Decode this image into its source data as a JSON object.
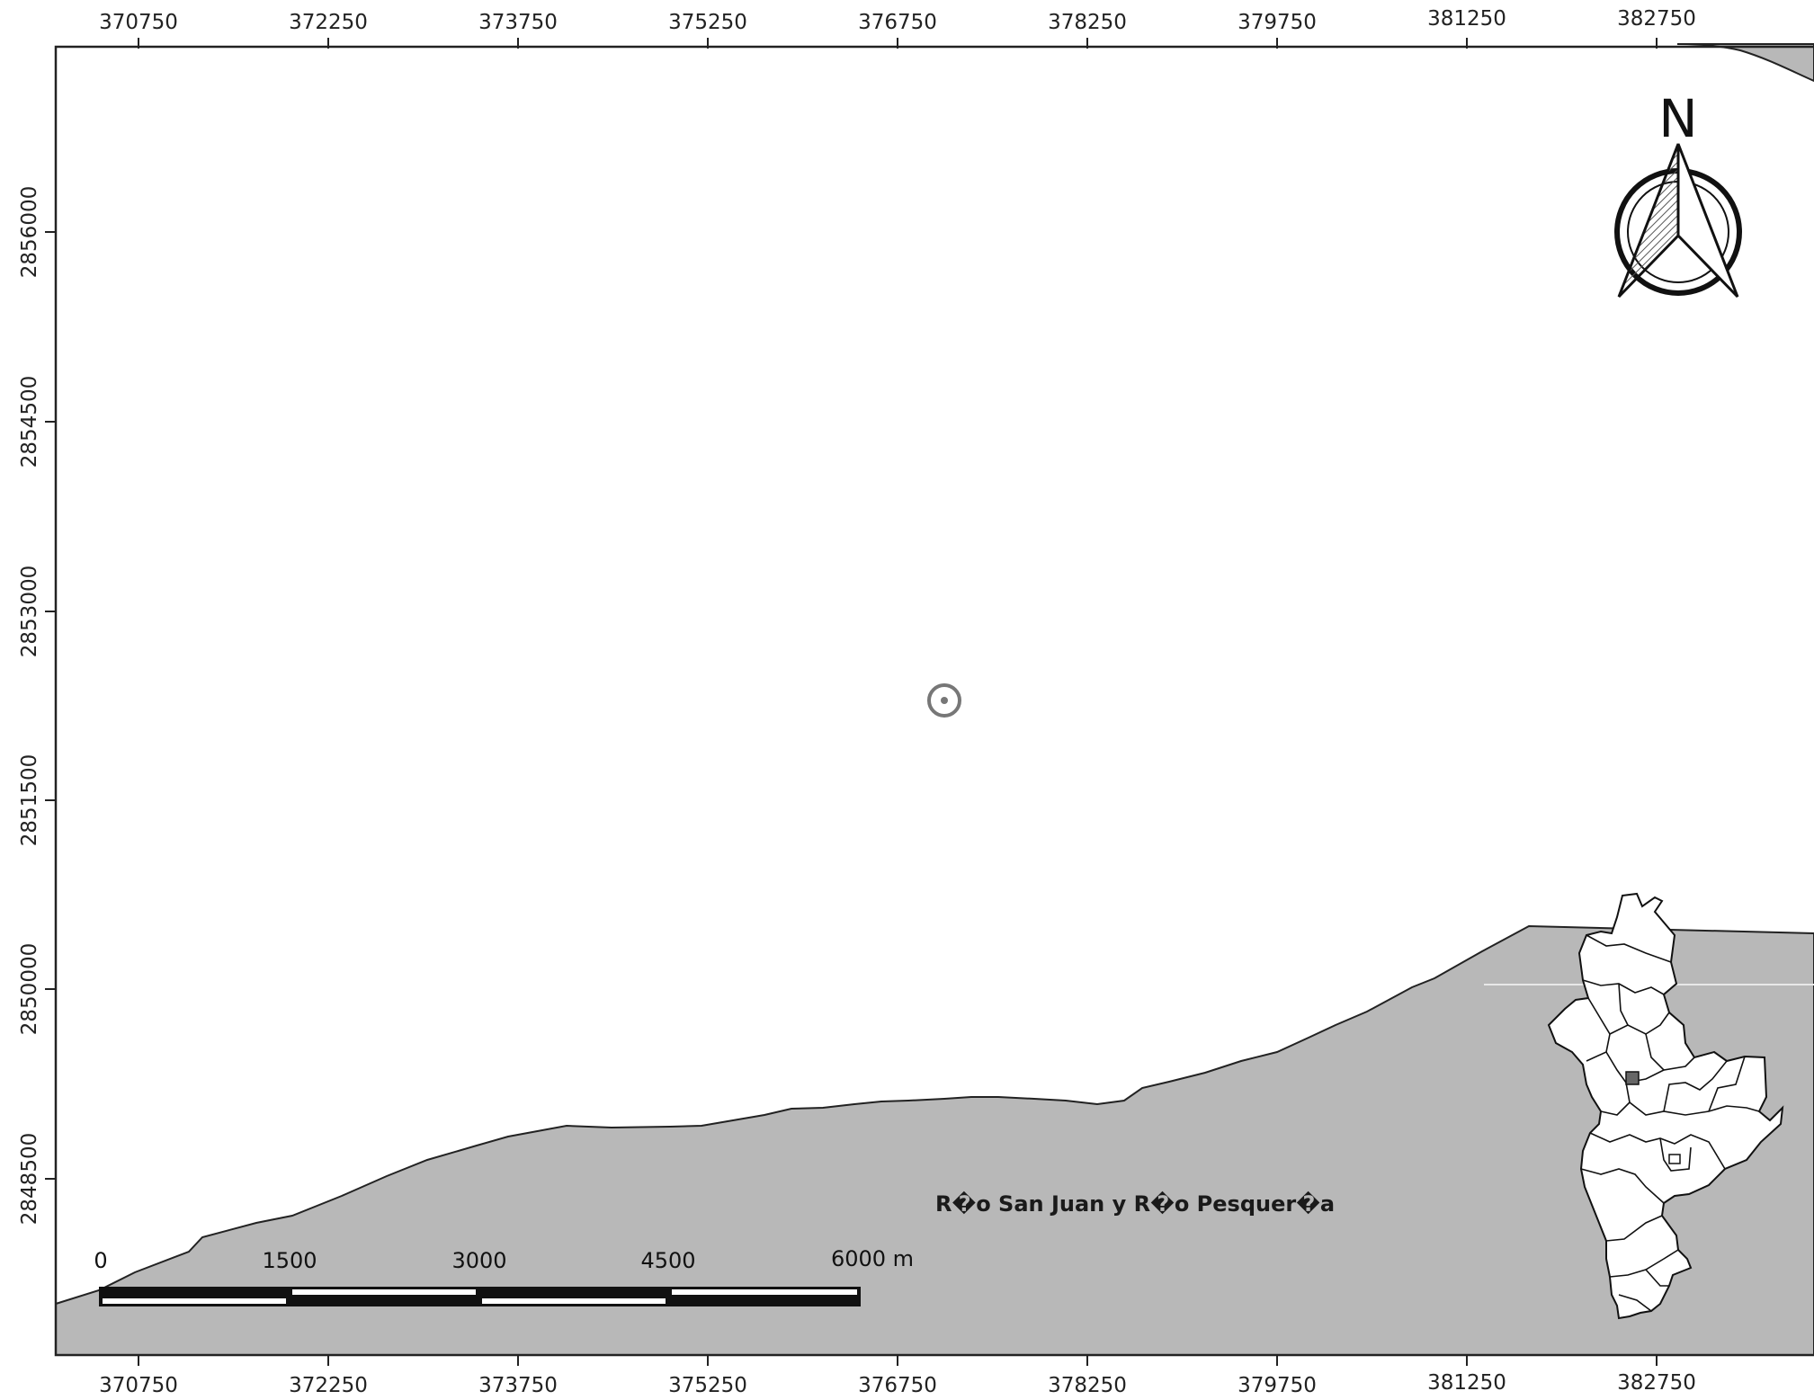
{
  "map": {
    "x_ticks_top": [
      "370750",
      "372250",
      "373750",
      "375250",
      "376750",
      "378250",
      "379750",
      "381250",
      "382750"
    ],
    "x_ticks_bottom": [
      "370750",
      "372250",
      "373750",
      "375250",
      "376750",
      "378250",
      "379750",
      "381250",
      "382750"
    ],
    "y_ticks": [
      "2856000",
      "2854500",
      "2853000",
      "2851500",
      "2850000",
      "2848500"
    ],
    "region_label": "R�o San Juan y R�o Pesquer�a",
    "north_label": "N",
    "scale_labels": [
      "0",
      "1500",
      "3000",
      "4500",
      "6000 m"
    ],
    "colors": {
      "background": "#ffffff",
      "region_fill": "#b8b8b8",
      "frame": "#222222",
      "marker": "#777777"
    }
  }
}
